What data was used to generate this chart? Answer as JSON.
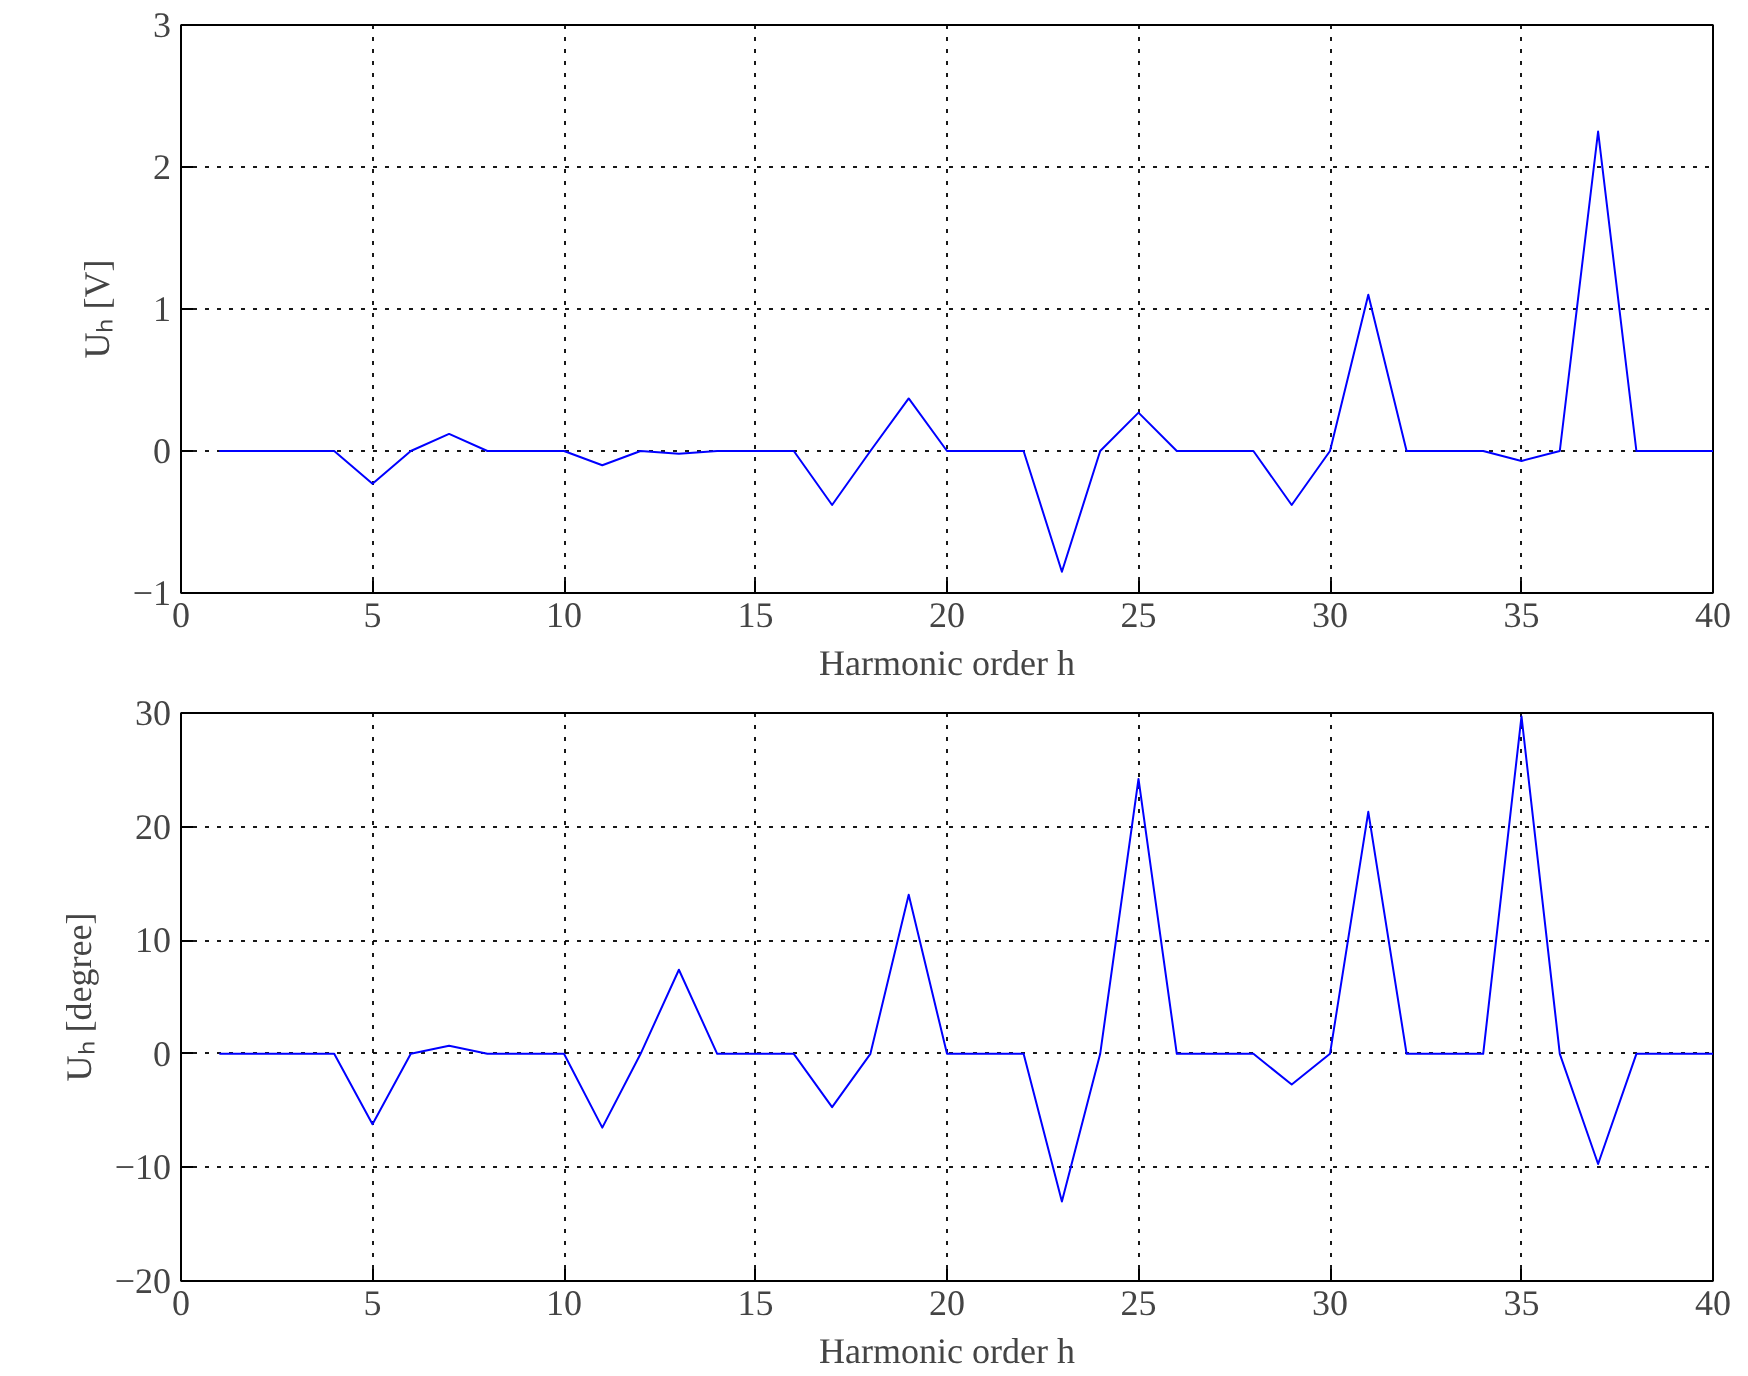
{
  "chart_data": [
    {
      "type": "line",
      "xlabel": "Harmonic order h",
      "ylabel": "Uₕ [V]",
      "x": [
        1,
        2,
        3,
        4,
        5,
        6,
        7,
        8,
        9,
        10,
        11,
        12,
        13,
        14,
        15,
        16,
        17,
        18,
        19,
        20,
        21,
        22,
        23,
        24,
        25,
        26,
        27,
        28,
        29,
        30,
        31,
        32,
        33,
        34,
        35,
        36,
        37,
        38,
        39,
        40
      ],
      "series": [
        {
          "color": "#0000ff",
          "values": [
            0,
            0,
            0,
            0,
            -0.23,
            0,
            0.12,
            0,
            0,
            0,
            -0.1,
            0,
            -0.02,
            0,
            0,
            0,
            -0.38,
            0,
            0.37,
            0,
            0,
            0,
            -0.85,
            0,
            0.27,
            0,
            0,
            0,
            -0.38,
            0,
            1.1,
            0,
            0,
            0,
            -0.07,
            0,
            2.25,
            0,
            0,
            0
          ]
        }
      ],
      "xlim": [
        0,
        40
      ],
      "xticks": [
        0,
        5,
        10,
        15,
        20,
        25,
        30,
        35,
        40
      ],
      "ylim": [
        -1,
        3
      ],
      "yticks": [
        -1,
        0,
        1,
        2,
        3
      ],
      "grid": true,
      "marker": "none",
      "line_style": "solid"
    },
    {
      "type": "line",
      "xlabel": "Harmonic order h",
      "ylabel": "Uₕ [degree]",
      "x": [
        1,
        2,
        3,
        4,
        5,
        6,
        7,
        8,
        9,
        10,
        11,
        12,
        13,
        14,
        15,
        16,
        17,
        18,
        19,
        20,
        21,
        22,
        23,
        24,
        25,
        26,
        27,
        28,
        29,
        30,
        31,
        32,
        33,
        34,
        35,
        36,
        37,
        38,
        39,
        40
      ],
      "series": [
        {
          "color": "#0000ff",
          "values": [
            0,
            0,
            0,
            0,
            -6.2,
            0,
            0.7,
            0,
            0,
            0,
            -6.5,
            0,
            7.4,
            0,
            0,
            0,
            -4.7,
            0,
            14,
            0,
            0,
            0,
            -13,
            0,
            24.2,
            0,
            0,
            0,
            -2.7,
            0,
            21.3,
            0,
            0,
            0,
            29.7,
            0,
            -9.7,
            0,
            0,
            0
          ]
        }
      ],
      "xlim": [
        0,
        40
      ],
      "xticks": [
        0,
        5,
        10,
        15,
        20,
        25,
        30,
        35,
        40
      ],
      "ylim": [
        -20,
        30
      ],
      "yticks": [
        -20,
        -10,
        0,
        10,
        20,
        30
      ],
      "grid": true,
      "marker": "none",
      "line_style": "solid"
    }
  ]
}
